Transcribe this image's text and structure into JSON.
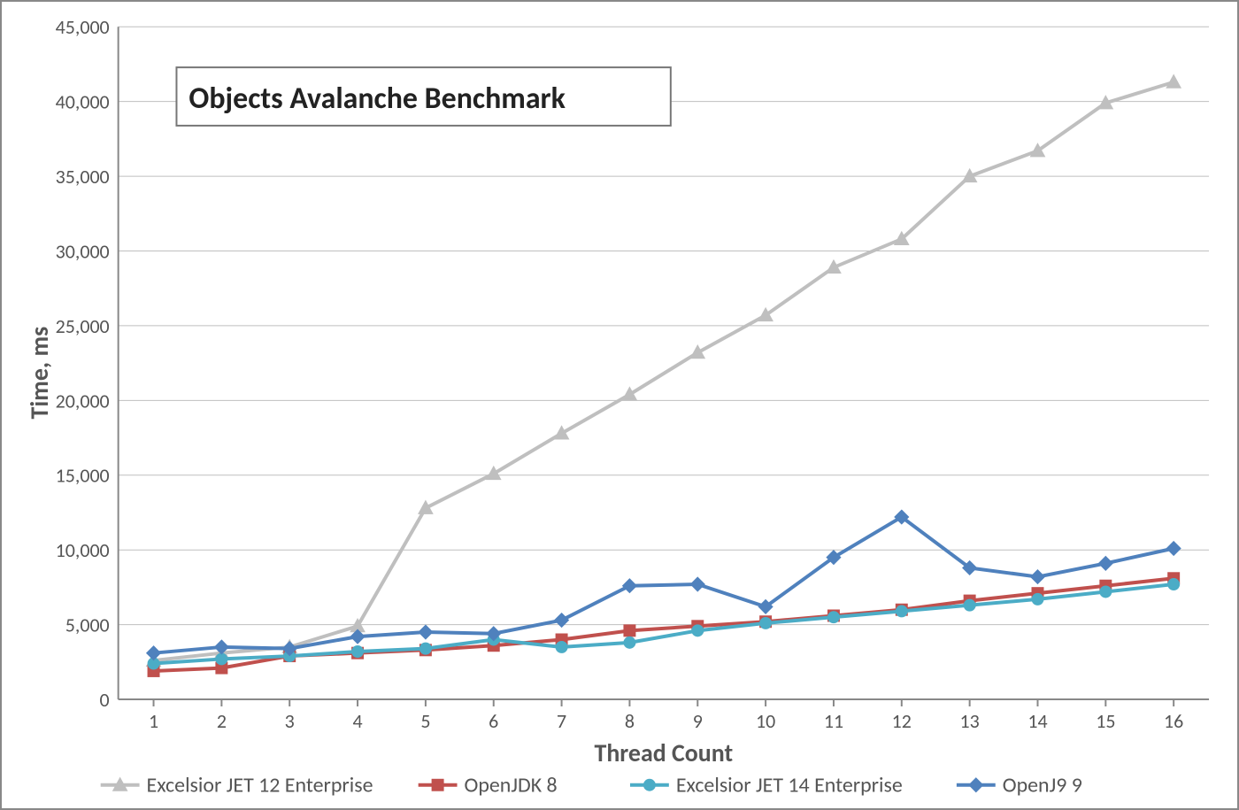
{
  "chart": {
    "type": "line",
    "title": "Objects Avalanche Benchmark",
    "title_fontsize": 34,
    "xlabel": "Thread Count",
    "ylabel": "Time, ms",
    "label_fontsize": 28,
    "tick_fontsize": 22,
    "background_color": "#ffffff",
    "grid_color": "#bfbfbf",
    "axis_color": "#888888",
    "text_color": "#555555",
    "xlim": [
      1,
      16
    ],
    "ylim": [
      0,
      45000
    ],
    "ytick_step": 5000,
    "ytick_labels": [
      "0",
      "5,000",
      "10,000",
      "15,000",
      "20,000",
      "25,000",
      "30,000",
      "35,000",
      "40,000",
      "45,000"
    ],
    "x_categories": [
      "1",
      "2",
      "3",
      "4",
      "5",
      "6",
      "7",
      "8",
      "9",
      "10",
      "11",
      "12",
      "13",
      "14",
      "15",
      "16"
    ],
    "line_width": 4,
    "marker_size": 6,
    "series": [
      {
        "name": "Excelsior JET 12 Enterprise",
        "color": "#bfbfbf",
        "marker": "triangle",
        "values": [
          2600,
          3100,
          3500,
          4900,
          12800,
          15100,
          17800,
          20400,
          23200,
          25700,
          28900,
          30800,
          35000,
          36700,
          39900,
          41300
        ]
      },
      {
        "name": "OpenJDK 8",
        "color": "#c0504d",
        "marker": "square",
        "values": [
          1900,
          2100,
          2900,
          3100,
          3300,
          3600,
          4000,
          4600,
          4900,
          5200,
          5600,
          6000,
          6600,
          7100,
          7600,
          8100
        ]
      },
      {
        "name": "Excelsior JET 14 Enterprise",
        "color": "#4bacc6",
        "marker": "circle",
        "values": [
          2400,
          2700,
          2900,
          3200,
          3400,
          4000,
          3500,
          3800,
          4600,
          5100,
          5500,
          5900,
          6300,
          6700,
          7200,
          7700
        ]
      },
      {
        "name": "OpenJ9 9",
        "color": "#4f81bd",
        "marker": "diamond",
        "values": [
          3100,
          3500,
          3400,
          4200,
          4500,
          4400,
          5300,
          7600,
          7700,
          6200,
          9500,
          12200,
          8800,
          8200,
          9100,
          10100
        ]
      }
    ],
    "legend_fontsize": 24
  }
}
